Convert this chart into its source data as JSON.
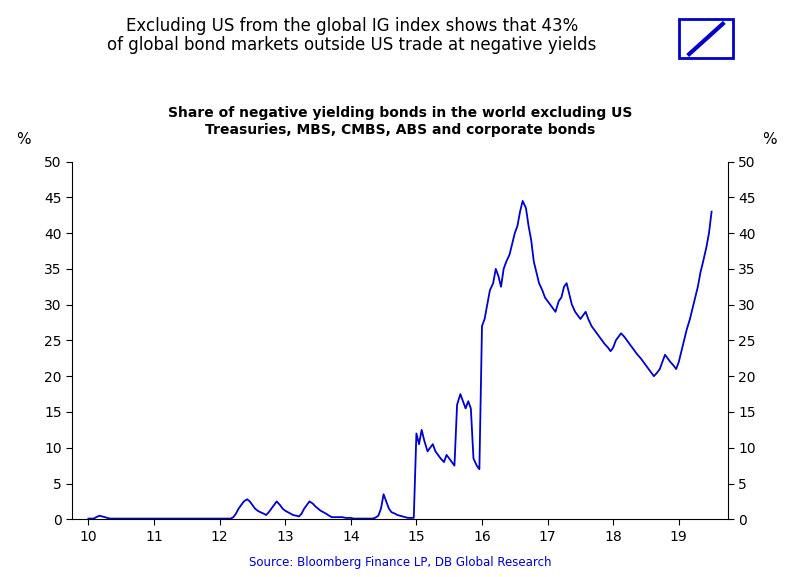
{
  "title_line1": "Excluding US from the global IG index shows that 43%",
  "title_line2": "of global bond markets outside US trade at negative yields",
  "subtitle_line1": "Share of negative yielding bonds in the world excluding US",
  "subtitle_line2": "Treasuries, MBS, CMBS, ABS and corporate bonds",
  "ylabel_left": "%",
  "ylabel_right": "%",
  "source": "Source: Bloomberg Finance LP, DB Global Research",
  "xlim": [
    9.75,
    19.75
  ],
  "ylim": [
    0,
    50
  ],
  "xticks": [
    10,
    11,
    12,
    13,
    14,
    15,
    16,
    17,
    18,
    19
  ],
  "yticks": [
    0,
    5,
    10,
    15,
    20,
    25,
    30,
    35,
    40,
    45,
    50
  ],
  "line_color": "#0000CC",
  "background_color": "#FFFFFF",
  "x": [
    10.0,
    10.04,
    10.08,
    10.12,
    10.17,
    10.21,
    10.25,
    10.29,
    10.33,
    10.37,
    10.42,
    10.46,
    10.5,
    10.54,
    10.58,
    10.62,
    10.67,
    10.71,
    10.75,
    10.79,
    10.83,
    10.87,
    10.92,
    10.96,
    11.0,
    11.04,
    11.08,
    11.12,
    11.17,
    11.21,
    11.25,
    11.29,
    11.33,
    11.37,
    11.42,
    11.46,
    11.5,
    11.54,
    11.58,
    11.62,
    11.67,
    11.71,
    11.75,
    11.79,
    11.83,
    11.87,
    11.92,
    11.96,
    12.0,
    12.04,
    12.08,
    12.12,
    12.17,
    12.21,
    12.25,
    12.29,
    12.33,
    12.37,
    12.42,
    12.46,
    12.5,
    12.54,
    12.58,
    12.62,
    12.67,
    12.71,
    12.75,
    12.79,
    12.83,
    12.87,
    12.92,
    12.96,
    13.0,
    13.04,
    13.08,
    13.12,
    13.17,
    13.21,
    13.25,
    13.29,
    13.33,
    13.37,
    13.42,
    13.46,
    13.5,
    13.54,
    13.58,
    13.62,
    13.67,
    13.71,
    13.75,
    13.79,
    13.83,
    13.87,
    13.92,
    13.96,
    14.0,
    14.04,
    14.08,
    14.12,
    14.17,
    14.21,
    14.25,
    14.29,
    14.33,
    14.37,
    14.42,
    14.46,
    14.5,
    14.54,
    14.58,
    14.62,
    14.67,
    14.71,
    14.75,
    14.79,
    14.83,
    14.87,
    14.92,
    14.96,
    15.0,
    15.04,
    15.08,
    15.12,
    15.17,
    15.21,
    15.25,
    15.29,
    15.33,
    15.37,
    15.42,
    15.46,
    15.5,
    15.54,
    15.58,
    15.62,
    15.67,
    15.71,
    15.75,
    15.79,
    15.83,
    15.87,
    15.92,
    15.96,
    16.0,
    16.04,
    16.08,
    16.12,
    16.17,
    16.21,
    16.25,
    16.29,
    16.33,
    16.37,
    16.42,
    16.46,
    16.5,
    16.54,
    16.58,
    16.62,
    16.67,
    16.71,
    16.75,
    16.79,
    16.83,
    16.87,
    16.92,
    16.96,
    17.0,
    17.04,
    17.08,
    17.12,
    17.17,
    17.21,
    17.25,
    17.29,
    17.33,
    17.37,
    17.42,
    17.46,
    17.5,
    17.54,
    17.58,
    17.62,
    17.67,
    17.71,
    17.75,
    17.79,
    17.83,
    17.87,
    17.92,
    17.96,
    18.0,
    18.04,
    18.08,
    18.12,
    18.17,
    18.21,
    18.25,
    18.29,
    18.33,
    18.37,
    18.42,
    18.46,
    18.5,
    18.54,
    18.58,
    18.62,
    18.67,
    18.71,
    18.75,
    18.79,
    18.83,
    18.87,
    18.92,
    18.96,
    19.0,
    19.04,
    19.08,
    19.12,
    19.17,
    19.21,
    19.25,
    19.29,
    19.33,
    19.37,
    19.42,
    19.46,
    19.5
  ],
  "y": [
    0.1,
    0.1,
    0.1,
    0.3,
    0.5,
    0.4,
    0.3,
    0.2,
    0.1,
    0.1,
    0.1,
    0.1,
    0.1,
    0.1,
    0.1,
    0.1,
    0.1,
    0.1,
    0.1,
    0.1,
    0.1,
    0.1,
    0.1,
    0.1,
    0.1,
    0.1,
    0.1,
    0.1,
    0.1,
    0.1,
    0.1,
    0.1,
    0.1,
    0.1,
    0.1,
    0.1,
    0.1,
    0.1,
    0.1,
    0.1,
    0.1,
    0.1,
    0.1,
    0.1,
    0.1,
    0.1,
    0.1,
    0.1,
    0.1,
    0.1,
    0.1,
    0.1,
    0.1,
    0.3,
    0.8,
    1.5,
    2.0,
    2.5,
    2.8,
    2.5,
    2.0,
    1.5,
    1.2,
    1.0,
    0.8,
    0.6,
    1.0,
    1.5,
    2.0,
    2.5,
    2.0,
    1.5,
    1.2,
    1.0,
    0.8,
    0.6,
    0.5,
    0.4,
    0.8,
    1.5,
    2.0,
    2.5,
    2.2,
    1.8,
    1.5,
    1.2,
    1.0,
    0.8,
    0.5,
    0.3,
    0.3,
    0.3,
    0.3,
    0.3,
    0.2,
    0.2,
    0.2,
    0.1,
    0.1,
    0.1,
    0.1,
    0.1,
    0.1,
    0.1,
    0.1,
    0.2,
    0.5,
    1.5,
    3.5,
    2.5,
    1.5,
    1.0,
    0.8,
    0.6,
    0.5,
    0.4,
    0.3,
    0.2,
    0.2,
    0.2,
    12.0,
    10.5,
    12.5,
    11.0,
    9.5,
    10.0,
    10.5,
    9.5,
    9.0,
    8.5,
    8.0,
    9.0,
    8.5,
    8.0,
    7.5,
    16.0,
    17.5,
    16.5,
    15.5,
    16.5,
    15.5,
    8.5,
    7.5,
    7.0,
    27.0,
    28.0,
    30.0,
    32.0,
    33.0,
    35.0,
    34.0,
    32.5,
    35.0,
    36.0,
    37.0,
    38.5,
    40.0,
    41.0,
    43.0,
    44.5,
    43.5,
    41.0,
    39.0,
    36.0,
    34.5,
    33.0,
    32.0,
    31.0,
    30.5,
    30.0,
    29.5,
    29.0,
    30.5,
    31.0,
    32.5,
    33.0,
    31.5,
    30.0,
    29.0,
    28.5,
    28.0,
    28.5,
    29.0,
    28.0,
    27.0,
    26.5,
    26.0,
    25.5,
    25.0,
    24.5,
    24.0,
    23.5,
    24.0,
    25.0,
    25.5,
    26.0,
    25.5,
    25.0,
    24.5,
    24.0,
    23.5,
    23.0,
    22.5,
    22.0,
    21.5,
    21.0,
    20.5,
    20.0,
    20.5,
    21.0,
    22.0,
    23.0,
    22.5,
    22.0,
    21.5,
    21.0,
    22.0,
    23.5,
    25.0,
    26.5,
    28.0,
    29.5,
    31.0,
    32.5,
    34.5,
    36.0,
    38.0,
    40.0,
    43.0
  ]
}
